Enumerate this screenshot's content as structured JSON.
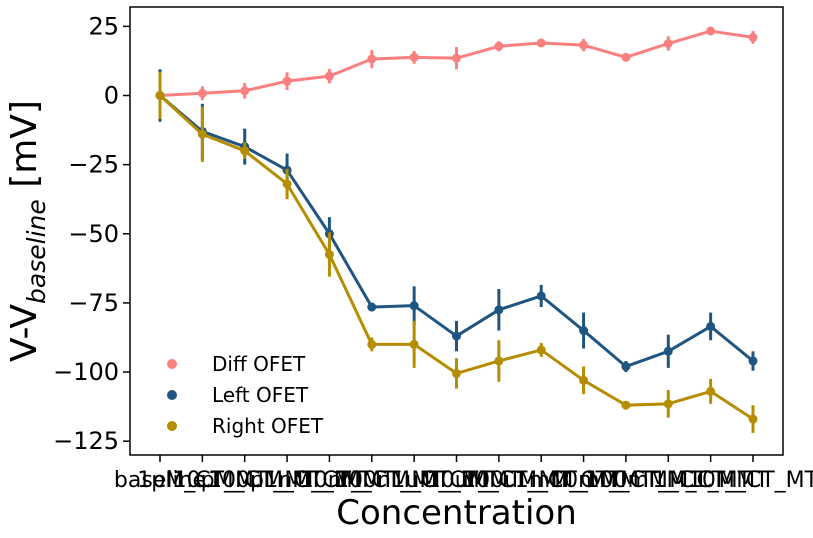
{
  "chart_data": {
    "type": "line",
    "xlabel": "Concentration",
    "ylabel_main": "V-V",
    "ylabel_sub": "baseline",
    "ylabel_unit": " [mV]",
    "ylim": [
      -130,
      32
    ],
    "yticks": [
      25,
      0,
      -25,
      -50,
      -75,
      -100,
      -125
    ],
    "ytick_labels": [
      "25",
      "0",
      "−25",
      "−50",
      "−75",
      "−100",
      "−125"
    ],
    "categories": [
      "baseline",
      "1pM_CT_MT",
      "10pM_CT_MT",
      "100pM_CT_MT",
      "1nM_CT_MT",
      "10nM_CT_MT",
      "100nM_CT_MT",
      "1uM_CT_MT",
      "10uM_CT_MT",
      "100uM_CT_MT",
      "1mM_CT_MT",
      "10mM_CT_MT",
      "100mM_CT_MT",
      "1M_CT_MT",
      "10M_CT_MT"
    ],
    "legend_position": "lower-left",
    "grid": false,
    "series": [
      {
        "name": "Diff OFET",
        "color": "#fa7f7f",
        "values": [
          0,
          0.8,
          1.7,
          5.2,
          7.0,
          13.2,
          13.8,
          13.5,
          17.8,
          19.0,
          18.2,
          13.8,
          18.8,
          23.3,
          21.0
        ],
        "errors": [
          1.0,
          2.5,
          2.8,
          3.2,
          2.6,
          3.2,
          2.3,
          4.0,
          1.8,
          1.5,
          2.2,
          1.5,
          2.6,
          1.2,
          2.3
        ]
      },
      {
        "name": "Left OFET",
        "color": "#1f5580",
        "values": [
          0,
          -13.0,
          -18.5,
          -27.0,
          -50.0,
          -76.5,
          -76.0,
          -87.0,
          -77.5,
          -72.5,
          -85.0,
          -98.0,
          -92.5,
          -83.5,
          -96.0
        ],
        "errors": [
          9.5,
          10.0,
          6.5,
          6.0,
          6.0,
          1.5,
          7.0,
          5.5,
          7.5,
          4.0,
          6.5,
          2.0,
          6.0,
          5.0,
          3.5
        ]
      },
      {
        "name": "Right OFET",
        "color": "#b58d00",
        "values": [
          0,
          -14.0,
          -20.0,
          -32.0,
          -57.5,
          -90.0,
          -90.0,
          -100.5,
          -96.0,
          -92.0,
          -103.0,
          -112.0,
          -111.5,
          -107.0,
          -117.0
        ],
        "errors": [
          8.5,
          10.0,
          3.0,
          5.5,
          8.0,
          2.5,
          8.5,
          5.5,
          7.5,
          2.5,
          5.0,
          1.5,
          5.0,
          4.5,
          5.0
        ]
      }
    ]
  }
}
